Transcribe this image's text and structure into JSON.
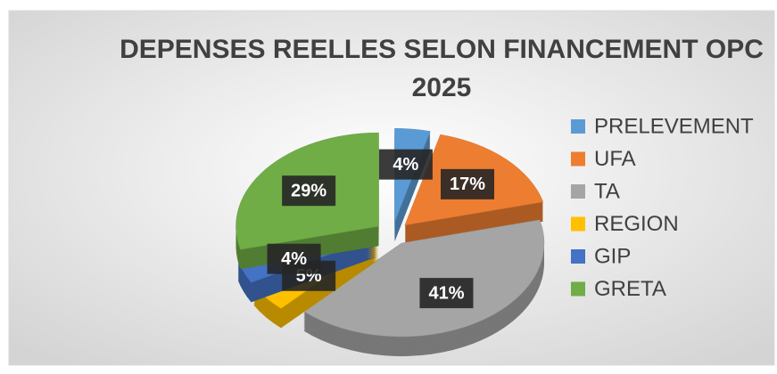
{
  "chart_data": {
    "type": "pie",
    "title": "DEPENSES REELLES SELON FINANCEMENT OPC 2025",
    "categories": [
      "PRELEVEMENT",
      "UFA",
      "TA",
      "REGION",
      "GIP",
      "GRETA"
    ],
    "values": [
      4,
      17,
      41,
      5,
      4,
      29
    ],
    "value_labels": [
      "4%",
      "17%",
      "41%",
      "5%",
      "4%",
      "29%"
    ],
    "colors": [
      "#5b9bd5",
      "#ed7d31",
      "#a5a5a5",
      "#ffc000",
      "#4472c4",
      "#70ad47"
    ],
    "legend": "right"
  }
}
